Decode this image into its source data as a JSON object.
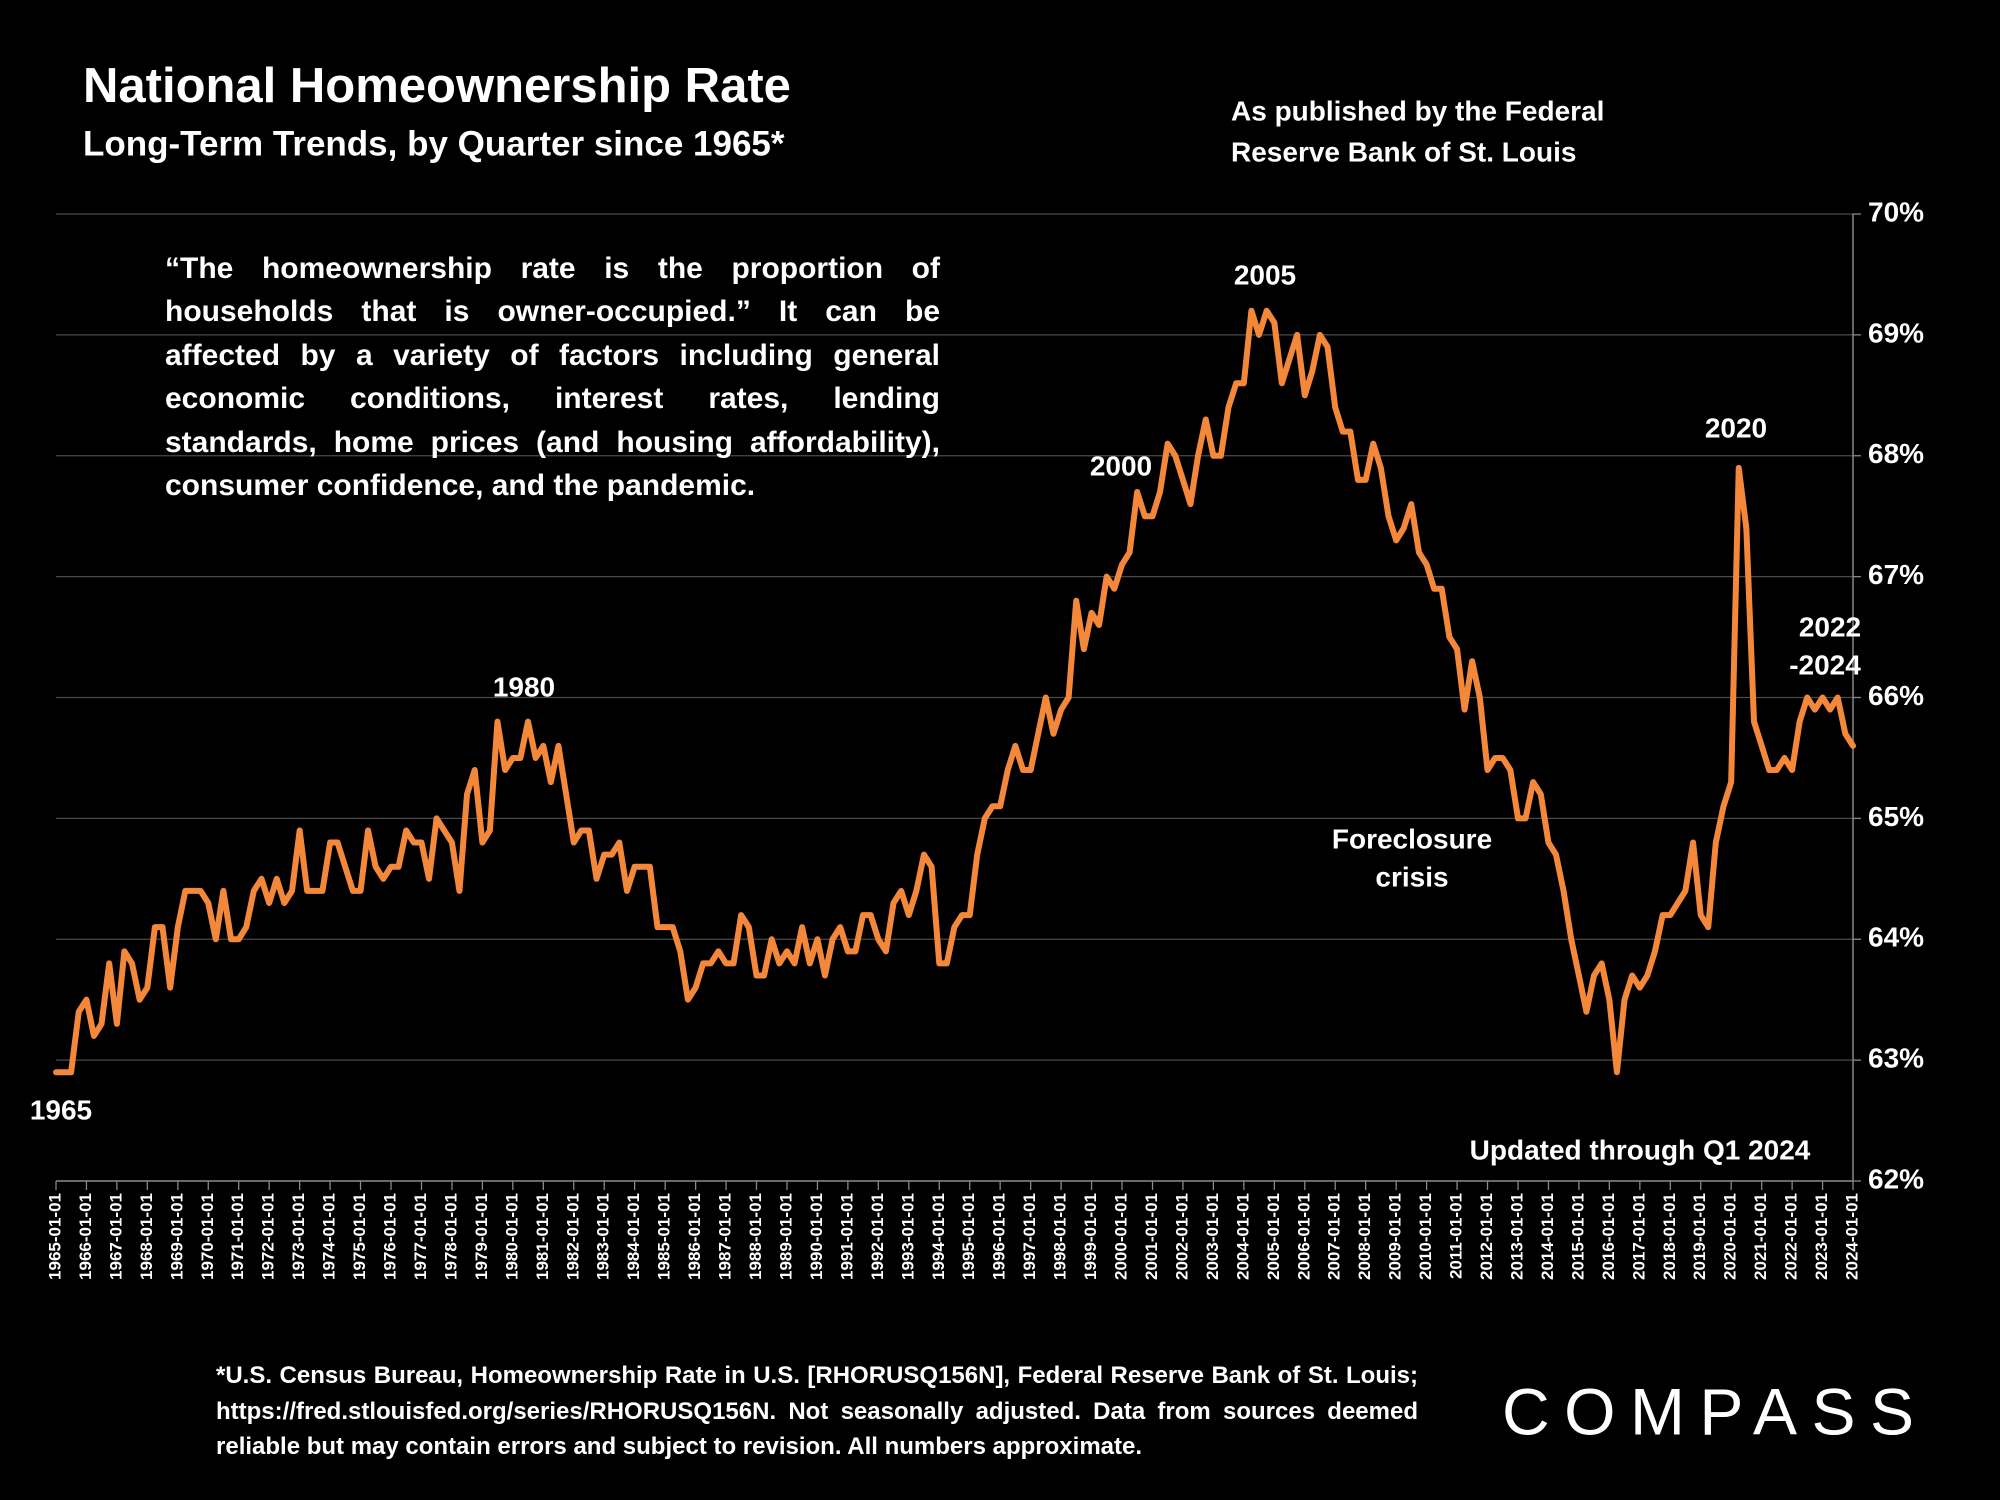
{
  "chart_data": {
    "type": "line",
    "title": "National Homeownership Rate",
    "subtitle": "Long-Term Trends, by Quarter since 1965*",
    "source": [
      "As published by the Federal",
      "Reserve Bank of St. Louis"
    ],
    "quote": "“The homeownership rate is the proportion of households that is owner-occupied.” It can be affected by a variety of factors including general economic conditions, interest rates, lending standards, home prices (and housing affordability), consumer confidence, and the pandemic.",
    "annotations": [
      "1965",
      "1980",
      "2000",
      "2005",
      "2020",
      "2022",
      "-2024",
      "Foreclosure",
      "crisis",
      "Updated through Q1 2024"
    ],
    "footnote": "*U.S. Census Bureau, Homeownership Rate in U.S. [RHORUSQ156N], Federal Reserve Bank of St. Louis; https://fred.stlouisfed.org/series/RHORUSQ156N. Not seasonally adjusted. Data from sources deemed reliable but may contain errors and subject to revision. All numbers approximate.",
    "logo": "COMPASS",
    "x": [
      "1965-01-01",
      "1965-04-01",
      "1965-07-01",
      "1965-10-01",
      "1966-01-01",
      "1966-04-01",
      "1966-07-01",
      "1966-10-01",
      "1967-01-01",
      "1967-04-01",
      "1967-07-01",
      "1967-10-01",
      "1968-01-01",
      "1968-04-01",
      "1968-07-01",
      "1968-10-01",
      "1969-01-01",
      "1969-04-01",
      "1969-07-01",
      "1969-10-01",
      "1970-01-01",
      "1970-04-01",
      "1970-07-01",
      "1970-10-01",
      "1971-01-01",
      "1971-04-01",
      "1971-07-01",
      "1971-10-01",
      "1972-01-01",
      "1972-04-01",
      "1972-07-01",
      "1972-10-01",
      "1973-01-01",
      "1973-04-01",
      "1973-07-01",
      "1973-10-01",
      "1974-01-01",
      "1974-04-01",
      "1974-07-01",
      "1974-10-01",
      "1975-01-01",
      "1975-04-01",
      "1975-07-01",
      "1975-10-01",
      "1976-01-01",
      "1976-04-01",
      "1976-07-01",
      "1976-10-01",
      "1977-01-01",
      "1977-04-01",
      "1977-07-01",
      "1977-10-01",
      "1978-01-01",
      "1978-04-01",
      "1978-07-01",
      "1978-10-01",
      "1979-01-01",
      "1979-04-01",
      "1979-07-01",
      "1979-10-01",
      "1980-01-01",
      "1980-04-01",
      "1980-07-01",
      "1980-10-01",
      "1981-01-01",
      "1981-04-01",
      "1981-07-01",
      "1981-10-01",
      "1982-01-01",
      "1982-04-01",
      "1982-07-01",
      "1982-10-01",
      "1983-01-01",
      "1983-04-01",
      "1983-07-01",
      "1983-10-01",
      "1984-01-01",
      "1984-04-01",
      "1984-07-01",
      "1984-10-01",
      "1985-01-01",
      "1985-04-01",
      "1985-07-01",
      "1985-10-01",
      "1986-01-01",
      "1986-04-01",
      "1986-07-01",
      "1986-10-01",
      "1987-01-01",
      "1987-04-01",
      "1987-07-01",
      "1987-10-01",
      "1988-01-01",
      "1988-04-01",
      "1988-07-01",
      "1988-10-01",
      "1989-01-01",
      "1989-04-01",
      "1989-07-01",
      "1989-10-01",
      "1990-01-01",
      "1990-04-01",
      "1990-07-01",
      "1990-10-01",
      "1991-01-01",
      "1991-04-01",
      "1991-07-01",
      "1991-10-01",
      "1992-01-01",
      "1992-04-01",
      "1992-07-01",
      "1992-10-01",
      "1993-01-01",
      "1993-04-01",
      "1993-07-01",
      "1993-10-01",
      "1994-01-01",
      "1994-04-01",
      "1994-07-01",
      "1994-10-01",
      "1995-01-01",
      "1995-04-01",
      "1995-07-01",
      "1995-10-01",
      "1996-01-01",
      "1996-04-01",
      "1996-07-01",
      "1996-10-01",
      "1997-01-01",
      "1997-04-01",
      "1997-07-01",
      "1997-10-01",
      "1998-01-01",
      "1998-04-01",
      "1998-07-01",
      "1998-10-01",
      "1999-01-01",
      "1999-04-01",
      "1999-07-01",
      "1999-10-01",
      "2000-01-01",
      "2000-04-01",
      "2000-07-01",
      "2000-10-01",
      "2001-01-01",
      "2001-04-01",
      "2001-07-01",
      "2001-10-01",
      "2002-01-01",
      "2002-04-01",
      "2002-07-01",
      "2002-10-01",
      "2003-01-01",
      "2003-04-01",
      "2003-07-01",
      "2003-10-01",
      "2004-01-01",
      "2004-04-01",
      "2004-07-01",
      "2004-10-01",
      "2005-01-01",
      "2005-04-01",
      "2005-07-01",
      "2005-10-01",
      "2006-01-01",
      "2006-04-01",
      "2006-07-01",
      "2006-10-01",
      "2007-01-01",
      "2007-04-01",
      "2007-07-01",
      "2007-10-01",
      "2008-01-01",
      "2008-04-01",
      "2008-07-01",
      "2008-10-01",
      "2009-01-01",
      "2009-04-01",
      "2009-07-01",
      "2009-10-01",
      "2010-01-01",
      "2010-04-01",
      "2010-07-01",
      "2010-10-01",
      "2011-01-01",
      "2011-04-01",
      "2011-07-01",
      "2011-10-01",
      "2012-01-01",
      "2012-04-01",
      "2012-07-01",
      "2012-10-01",
      "2013-01-01",
      "2013-04-01",
      "2013-07-01",
      "2013-10-01",
      "2014-01-01",
      "2014-04-01",
      "2014-07-01",
      "2014-10-01",
      "2015-01-01",
      "2015-04-01",
      "2015-07-01",
      "2015-10-01",
      "2016-01-01",
      "2016-04-01",
      "2016-07-01",
      "2016-10-01",
      "2017-01-01",
      "2017-04-01",
      "2017-07-01",
      "2017-10-01",
      "2018-01-01",
      "2018-04-01",
      "2018-07-01",
      "2018-10-01",
      "2019-01-01",
      "2019-04-01",
      "2019-07-01",
      "2019-10-01",
      "2020-01-01",
      "2020-04-01",
      "2020-07-01",
      "2020-10-01",
      "2021-01-01",
      "2021-04-01",
      "2021-07-01",
      "2021-10-01",
      "2022-01-01",
      "2022-04-01",
      "2022-07-01",
      "2022-10-01",
      "2023-01-01",
      "2023-04-01",
      "2023-07-01",
      "2023-10-01",
      "2024-01-01"
    ],
    "series": [
      {
        "name": "Homeownership Rate",
        "color": "#f4883a",
        "values": [
          62.9,
          62.9,
          62.9,
          63.4,
          63.5,
          63.2,
          63.3,
          63.8,
          63.3,
          63.9,
          63.8,
          63.5,
          63.6,
          64.1,
          64.1,
          63.6,
          64.1,
          64.4,
          64.4,
          64.4,
          64.3,
          64.0,
          64.4,
          64.0,
          64.0,
          64.1,
          64.4,
          64.5,
          64.3,
          64.5,
          64.3,
          64.4,
          64.9,
          64.4,
          64.4,
          64.4,
          64.8,
          64.8,
          64.6,
          64.4,
          64.4,
          64.9,
          64.6,
          64.5,
          64.6,
          64.6,
          64.9,
          64.8,
          64.8,
          64.5,
          65.0,
          64.9,
          64.8,
          64.4,
          65.2,
          65.4,
          64.8,
          64.9,
          65.8,
          65.4,
          65.5,
          65.5,
          65.8,
          65.5,
          65.6,
          65.3,
          65.6,
          65.2,
          64.8,
          64.9,
          64.9,
          64.5,
          64.7,
          64.7,
          64.8,
          64.4,
          64.6,
          64.6,
          64.6,
          64.1,
          64.1,
          64.1,
          63.9,
          63.5,
          63.6,
          63.8,
          63.8,
          63.9,
          63.8,
          63.8,
          64.2,
          64.1,
          63.7,
          63.7,
          64.0,
          63.8,
          63.9,
          63.8,
          64.1,
          63.8,
          64.0,
          63.7,
          64.0,
          64.1,
          63.9,
          63.9,
          64.2,
          64.2,
          64.0,
          63.9,
          64.3,
          64.4,
          64.2,
          64.4,
          64.7,
          64.6,
          63.8,
          63.8,
          64.1,
          64.2,
          64.2,
          64.7,
          65.0,
          65.1,
          65.1,
          65.4,
          65.6,
          65.4,
          65.4,
          65.7,
          66.0,
          65.7,
          65.9,
          66.0,
          66.8,
          66.4,
          66.7,
          66.6,
          67.0,
          66.9,
          67.1,
          67.2,
          67.7,
          67.5,
          67.5,
          67.7,
          68.1,
          68.0,
          67.8,
          67.6,
          68.0,
          68.3,
          68.0,
          68.0,
          68.4,
          68.6,
          68.6,
          69.2,
          69.0,
          69.2,
          69.1,
          68.6,
          68.8,
          69.0,
          68.5,
          68.7,
          69.0,
          68.9,
          68.4,
          68.2,
          68.2,
          67.8,
          67.8,
          68.1,
          67.9,
          67.5,
          67.3,
          67.4,
          67.6,
          67.2,
          67.1,
          66.9,
          66.9,
          66.5,
          66.4,
          65.9,
          66.3,
          66.0,
          65.4,
          65.5,
          65.5,
          65.4,
          65.0,
          65.0,
          65.3,
          65.2,
          64.8,
          64.7,
          64.4,
          64.0,
          63.7,
          63.4,
          63.7,
          63.8,
          63.5,
          62.9,
          63.5,
          63.7,
          63.6,
          63.7,
          63.9,
          64.2,
          64.2,
          64.3,
          64.4,
          64.8,
          64.2,
          64.1,
          64.8,
          65.1,
          65.3,
          67.9,
          67.4,
          65.8,
          65.6,
          65.4,
          65.4,
          65.5,
          65.4,
          65.8,
          66.0,
          65.9,
          66.0,
          65.9,
          66.0,
          65.7,
          65.6
        ]
      }
    ],
    "xlim": [
      "1965-01-01",
      "2024-01-01"
    ],
    "xticks": [
      "1965-01-01",
      "1966-01-01",
      "1967-01-01",
      "1968-01-01",
      "1969-01-01",
      "1970-01-01",
      "1971-01-01",
      "1972-01-01",
      "1973-01-01",
      "1974-01-01",
      "1975-01-01",
      "1976-01-01",
      "1977-01-01",
      "1978-01-01",
      "1979-01-01",
      "1980-01-01",
      "1981-01-01",
      "1982-01-01",
      "1983-01-01",
      "1984-01-01",
      "1985-01-01",
      "1986-01-01",
      "1987-01-01",
      "1988-01-01",
      "1989-01-01",
      "1990-01-01",
      "1991-01-01",
      "1992-01-01",
      "1993-01-01",
      "1994-01-01",
      "1995-01-01",
      "1996-01-01",
      "1997-01-01",
      "1998-01-01",
      "1999-01-01",
      "2000-01-01",
      "2001-01-01",
      "2002-01-01",
      "2003-01-01",
      "2004-01-01",
      "2005-01-01",
      "2006-01-01",
      "2007-01-01",
      "2008-01-01",
      "2009-01-01",
      "2010-01-01",
      "2011-01-01",
      "2012-01-01",
      "2013-01-01",
      "2014-01-01",
      "2015-01-01",
      "2016-01-01",
      "2017-01-01",
      "2018-01-01",
      "2019-01-01",
      "2020-01-01",
      "2021-01-01",
      "2022-01-01",
      "2023-01-01",
      "2024-01-01"
    ],
    "ylim": [
      62,
      70
    ],
    "yticks": [
      {
        "value": 62,
        "label": "62%"
      },
      {
        "value": 63,
        "label": "63%"
      },
      {
        "value": 64,
        "label": "64%"
      },
      {
        "value": 65,
        "label": "65%"
      },
      {
        "value": 66,
        "label": "66%"
      },
      {
        "value": 67,
        "label": "67%"
      },
      {
        "value": 68,
        "label": "68%"
      },
      {
        "value": 69,
        "label": "69%"
      },
      {
        "value": 70,
        "label": "70%"
      }
    ],
    "y_axis_side": "right",
    "grid": true
  }
}
